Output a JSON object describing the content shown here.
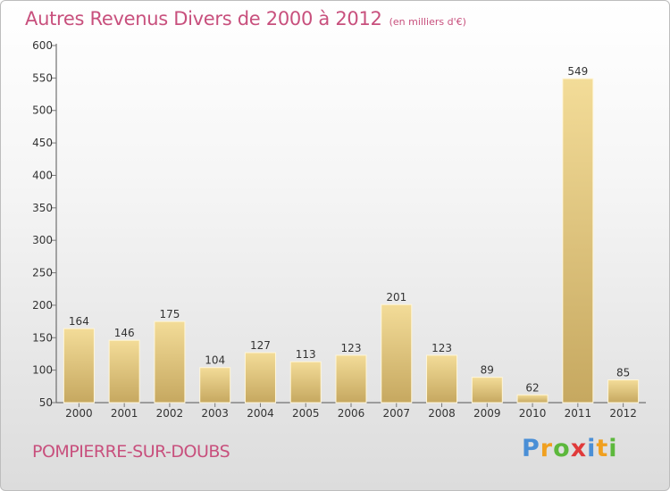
{
  "header": {
    "title": "Autres Revenus Divers de 2000 à 2012",
    "unit_note": "(en milliers d'€)"
  },
  "footer": {
    "town": "POMPIERRE-SUR-DOUBS",
    "logo_letters": [
      {
        "char": "P",
        "color": "#4a8fd6"
      },
      {
        "char": "r",
        "color": "#f0a020"
      },
      {
        "char": "o",
        "color": "#5cb83c"
      },
      {
        "char": "x",
        "color": "#e03a3a"
      },
      {
        "char": "i",
        "color": "#4a8fd6"
      },
      {
        "char": "t",
        "color": "#f0a020"
      },
      {
        "char": "i",
        "color": "#5cb83c"
      }
    ]
  },
  "colors": {
    "title": "#c8507d",
    "bar_light": "#f3dc98",
    "bar_dark": "#c6a860",
    "axis": "#555555",
    "grid_tick": "#777777"
  },
  "chart_data": {
    "type": "bar",
    "categories": [
      "2000",
      "2001",
      "2002",
      "2003",
      "2004",
      "2005",
      "2006",
      "2007",
      "2008",
      "2009",
      "2010",
      "2011",
      "2012"
    ],
    "values": [
      164,
      146,
      175,
      104,
      127,
      113,
      123,
      201,
      123,
      89,
      62,
      549,
      85
    ],
    "data_labels": [
      "164",
      "146",
      "175",
      "104",
      "127",
      "113",
      "123",
      "201",
      "123",
      "89",
      "62",
      "549",
      "85"
    ],
    "ylim": [
      50,
      600
    ],
    "yticks": [
      50,
      100,
      150,
      200,
      250,
      300,
      350,
      400,
      450,
      500,
      550,
      600
    ],
    "ytick_labels": [
      "50",
      "100",
      "150",
      "200",
      "250",
      "300",
      "350",
      "400",
      "450",
      "500",
      "550",
      "600"
    ],
    "xlabel": "",
    "ylabel": "",
    "grid": false,
    "legend": "none"
  }
}
